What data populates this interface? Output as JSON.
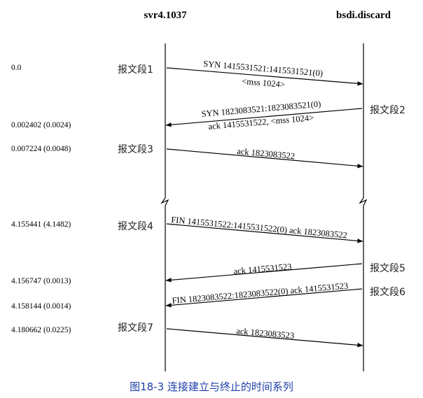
{
  "hosts": {
    "left": "svr4.1037",
    "right": "bsdi.discard"
  },
  "times": [
    "0.0",
    "0.002402 (0.0024)",
    "0.007224 (0.0048)",
    "4.155441 (4.1482)",
    "4.156747 (0.0013)",
    "4.158144 (0.0014)",
    "4.180662 (0.0225)"
  ],
  "segments": [
    {
      "id": "1",
      "label": "报文段1",
      "direction": "right",
      "lines": [
        "SYN  1415531521:1415531521(0)",
        "<mss 1024>"
      ]
    },
    {
      "id": "2",
      "label": "报文段2",
      "direction": "left",
      "lines": [
        "SYN  1823083521:1823083521(0)",
        "ack 1415531522, <mss 1024>"
      ]
    },
    {
      "id": "3",
      "label": "报文段3",
      "direction": "right",
      "lines": [
        "ack 1823083522"
      ]
    },
    {
      "id": "4",
      "label": "报文段4",
      "direction": "right",
      "lines": [
        "FIN  1415531522:1415531522(0) ack 1823083522"
      ]
    },
    {
      "id": "5",
      "label": "报文段5",
      "direction": "left",
      "lines": [
        "ack 1415531523"
      ]
    },
    {
      "id": "6",
      "label": "报文段6",
      "direction": "left",
      "lines": [
        "FIN  1823083522:1823083522(0) ack 1415531523"
      ]
    },
    {
      "id": "7",
      "label": "报文段7",
      "direction": "right",
      "lines": [
        "ack 1823083523"
      ]
    }
  ],
  "caption": "图18-3   连接建立与终止的时间系列"
}
